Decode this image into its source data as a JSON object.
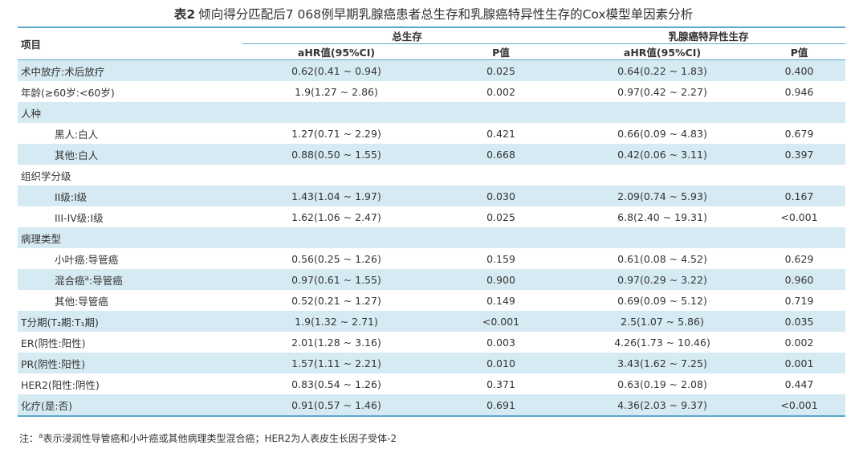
{
  "title": {
    "tag": "表2",
    "text": "倾向得分匹配后7 068例早期乳腺癌患者总生存和乳腺癌特异性生存的Cox模型单因素分析"
  },
  "headers": {
    "item": "项目",
    "group1": "总生存",
    "group2": "乳腺癌特异性生存",
    "hr": "aHR值(95%CI)",
    "p": "P值"
  },
  "rows": [
    {
      "label": "术中放疗:术后放疗",
      "os_hr": "0.62(0.41 ~ 0.94)",
      "os_p": "0.025",
      "bcss_hr": "0.64(0.22 ~ 1.83)",
      "bcss_p": "0.400"
    },
    {
      "label": "年龄(≥60岁:<60岁)",
      "os_hr": "1.9(1.27 ~ 2.86)",
      "os_p": "0.002",
      "bcss_hr": "0.97(0.42 ~ 2.27)",
      "bcss_p": "0.946"
    },
    {
      "label": "人种",
      "os_hr": "",
      "os_p": "",
      "bcss_hr": "",
      "bcss_p": ""
    },
    {
      "label": "黑人:白人",
      "os_hr": "1.27(0.71 ~ 2.29)",
      "os_p": "0.421",
      "bcss_hr": "0.66(0.09 ~ 4.83)",
      "bcss_p": "0.679"
    },
    {
      "label": "其他:白人",
      "os_hr": "0.88(0.50 ~ 1.55)",
      "os_p": "0.668",
      "bcss_hr": "0.42(0.06 ~ 3.11)",
      "bcss_p": "0.397"
    },
    {
      "label": "组织学分级",
      "os_hr": "",
      "os_p": "",
      "bcss_hr": "",
      "bcss_p": ""
    },
    {
      "label": "II级:I级",
      "os_hr": "1.43(1.04 ~ 1.97)",
      "os_p": "0.030",
      "bcss_hr": "2.09(0.74 ~ 5.93)",
      "bcss_p": "0.167"
    },
    {
      "label": "III-IV级:I级",
      "os_hr": "1.62(1.06 ~ 2.47)",
      "os_p": "0.025",
      "bcss_hr": "6.8(2.40 ~ 19.31)",
      "bcss_p": "<0.001"
    },
    {
      "label": "病理类型",
      "os_hr": "",
      "os_p": "",
      "bcss_hr": "",
      "bcss_p": ""
    },
    {
      "label": "小叶癌:导管癌",
      "os_hr": "0.56(0.25 ~ 1.26)",
      "os_p": "0.159",
      "bcss_hr": "0.61(0.08 ~ 4.52)",
      "bcss_p": "0.629"
    },
    {
      "label": "混合癌",
      "label_sup": "a",
      "label_tail": ":导管癌",
      "os_hr": "0.97(0.61 ~ 1.55)",
      "os_p": "0.900",
      "bcss_hr": "0.97(0.29 ~ 3.22)",
      "bcss_p": "0.960"
    },
    {
      "label": "其他:导管癌",
      "os_hr": "0.52(0.21 ~ 1.27)",
      "os_p": "0.149",
      "bcss_hr": "0.69(0.09 ~ 5.12)",
      "bcss_p": "0.719"
    },
    {
      "label": "T分期(T₂期:T₁期)",
      "os_hr": "1.9(1.32 ~ 2.71)",
      "os_p": "<0.001",
      "bcss_hr": "2.5(1.07 ~ 5.86)",
      "bcss_p": "0.035"
    },
    {
      "label": "ER(阴性:阳性)",
      "os_hr": "2.01(1.28 ~ 3.16)",
      "os_p": "0.003",
      "bcss_hr": "4.26(1.73 ~ 10.46)",
      "bcss_p": "0.002"
    },
    {
      "label": "PR(阴性:阳性)",
      "os_hr": "1.57(1.11 ~ 2.21)",
      "os_p": "0.010",
      "bcss_hr": "3.43(1.62 ~ 7.25)",
      "bcss_p": "0.001"
    },
    {
      "label": "HER2(阳性:阴性)",
      "os_hr": "0.83(0.54 ~ 1.26)",
      "os_p": "0.371",
      "bcss_hr": "0.63(0.19 ~ 2.08)",
      "bcss_p": "0.447"
    },
    {
      "label": "化疗(是:否)",
      "os_hr": "0.91(0.57 ~ 1.46)",
      "os_p": "0.691",
      "bcss_hr": "4.36(2.03 ~ 9.37)",
      "bcss_p": "<0.001"
    }
  ],
  "note": {
    "prefix": "注：",
    "sup": "a",
    "text": "表示浸润性导管癌和小叶癌或其他病理类型混合癌；HER2为人表皮生长因子受体-2"
  },
  "colors": {
    "shade": "#d6eaf3",
    "rule": "#5aa9cc"
  }
}
